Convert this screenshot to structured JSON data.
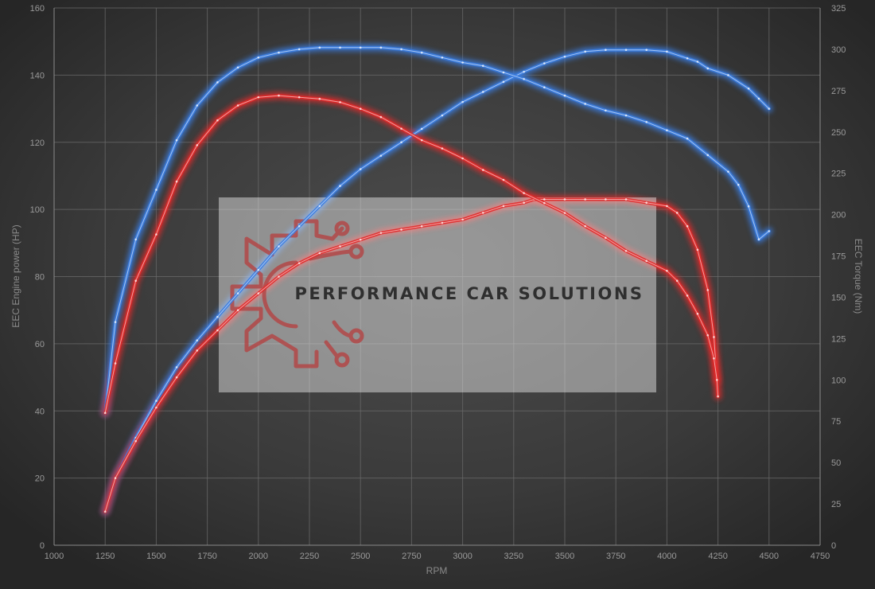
{
  "chart_data": {
    "type": "line",
    "xlabel": "RPM",
    "ylabel": "EEC Engine power (HP)",
    "y2label": "EEC Torque (Nm)",
    "xlim": [
      1000,
      4750
    ],
    "ylim": [
      0,
      160
    ],
    "y2lim": [
      0,
      325
    ],
    "xticks": [
      1000,
      1250,
      1500,
      1750,
      2000,
      2250,
      2500,
      2750,
      3000,
      3250,
      3500,
      3750,
      4000,
      4250,
      4500,
      4750
    ],
    "yticks": [
      0,
      20,
      40,
      60,
      80,
      100,
      120,
      140,
      160
    ],
    "y2ticks": [
      0,
      25,
      50,
      75,
      100,
      125,
      150,
      175,
      200,
      225,
      250,
      275,
      300,
      325
    ],
    "grid": true,
    "series": [
      {
        "axis": "left",
        "color": "#3b7de0",
        "x": [
          1250,
          1300,
          1400,
          1500,
          1600,
          1700,
          1800,
          1900,
          2000,
          2100,
          2200,
          2300,
          2400,
          2500,
          2600,
          2700,
          2800,
          2900,
          3000,
          3100,
          3200,
          3300,
          3400,
          3500,
          3600,
          3700,
          3800,
          3900,
          4000,
          4100,
          4150,
          4200,
          4300,
          4400,
          4450,
          4500
        ],
        "y": [
          10,
          20,
          32,
          43,
          53,
          61,
          68,
          75,
          82,
          89,
          95,
          101,
          107,
          112,
          116,
          120,
          124,
          128,
          132,
          135,
          138,
          141,
          143.5,
          145.5,
          147,
          147.5,
          147.5,
          147.5,
          147,
          145,
          144,
          142,
          140,
          136,
          133,
          130
        ]
      },
      {
        "axis": "left",
        "color": "#e02a2a",
        "x": [
          1250,
          1300,
          1400,
          1500,
          1600,
          1700,
          1800,
          1900,
          2000,
          2100,
          2200,
          2300,
          2400,
          2500,
          2600,
          2700,
          2800,
          2900,
          3000,
          3100,
          3200,
          3300,
          3350,
          3400,
          3500,
          3600,
          3700,
          3800,
          3900,
          4000,
          4050,
          4100,
          4150,
          4200,
          4230,
          4245
        ],
        "y": [
          10,
          20,
          31,
          41,
          50,
          58,
          64,
          70,
          75,
          80,
          84,
          87,
          89,
          91,
          93,
          94,
          95,
          96,
          97,
          99,
          101,
          102,
          103,
          103,
          103,
          103,
          103,
          103,
          102,
          101,
          99,
          95,
          88,
          76,
          62,
          49
        ]
      },
      {
        "axis": "right",
        "color": "#3b7de0",
        "x": [
          1250,
          1300,
          1400,
          1500,
          1600,
          1700,
          1800,
          1900,
          2000,
          2100,
          2200,
          2300,
          2400,
          2500,
          2600,
          2700,
          2800,
          2900,
          3000,
          3100,
          3200,
          3300,
          3400,
          3500,
          3600,
          3700,
          3800,
          3900,
          4000,
          4100,
          4200,
          4300,
          4350,
          4400,
          4450,
          4500
        ],
        "y": [
          80,
          135,
          185,
          215,
          245,
          266,
          280,
          289,
          295,
          298,
          300,
          301,
          301,
          301,
          301,
          300,
          298,
          295,
          292,
          290,
          286,
          282,
          277,
          272,
          267,
          263,
          260,
          256,
          251,
          246,
          236,
          226,
          218,
          205,
          185,
          190
        ]
      },
      {
        "axis": "right",
        "color": "#e02a2a",
        "x": [
          1250,
          1300,
          1400,
          1500,
          1600,
          1700,
          1800,
          1900,
          2000,
          2100,
          2200,
          2300,
          2400,
          2500,
          2600,
          2700,
          2800,
          2900,
          3000,
          3100,
          3200,
          3300,
          3400,
          3500,
          3600,
          3700,
          3800,
          3900,
          4000,
          4050,
          4100,
          4150,
          4200,
          4230,
          4245,
          4250
        ],
        "y": [
          80,
          110,
          160,
          188,
          220,
          242,
          257,
          266,
          271,
          272,
          271,
          270,
          268,
          264,
          259,
          252,
          245,
          240,
          234,
          227,
          221,
          213,
          207,
          201,
          193,
          186,
          178,
          172,
          166,
          160,
          151,
          140,
          127,
          113,
          100,
          90
        ]
      }
    ]
  },
  "watermark": {
    "text": "PERFORMANCE CAR SOLUTIONS",
    "logo": "gear-circuit-logo",
    "logo_color": "#b24848"
  }
}
